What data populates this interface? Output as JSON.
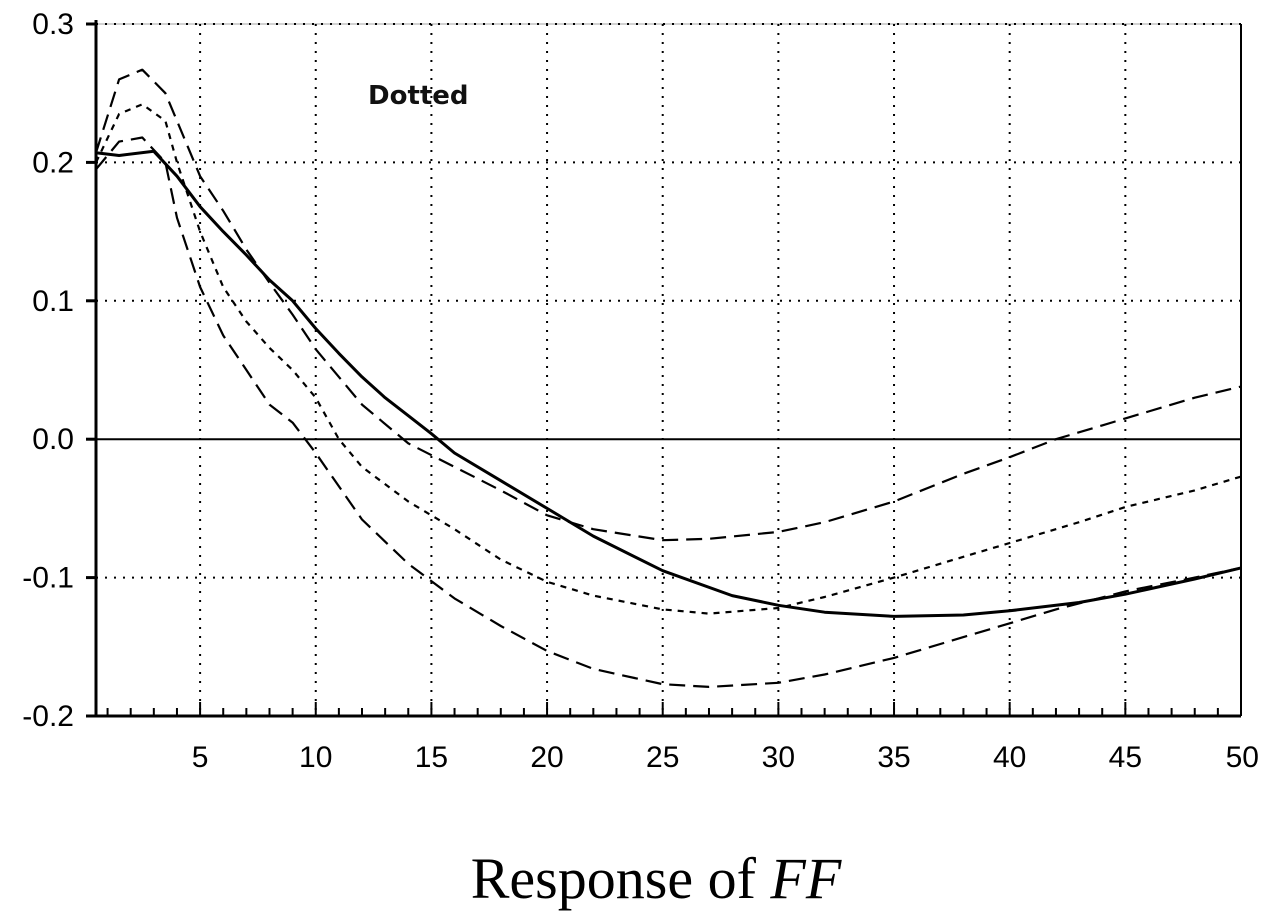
{
  "chart_data": {
    "type": "line",
    "xlabel_text": "Response of ",
    "xlabel_var": "FF",
    "annotation": "Dotted",
    "xlim": [
      0.5,
      50
    ],
    "ylim": [
      -0.2,
      0.3
    ],
    "x_ticks": [
      5,
      10,
      15,
      20,
      25,
      30,
      35,
      40,
      45,
      50
    ],
    "y_ticks": [
      {
        "v": -0.2,
        "label": "-0.2"
      },
      {
        "v": -0.1,
        "label": "-0.1"
      },
      {
        "v": 0.0,
        "label": "0.0"
      },
      {
        "v": 0.1,
        "label": "0.1"
      },
      {
        "v": 0.2,
        "label": "0.2"
      },
      {
        "v": 0.3,
        "label": "0.3"
      }
    ],
    "grid": "dotted",
    "zero_line": true,
    "series": [
      {
        "style": "solid",
        "x": [
          0.5,
          1.5,
          3,
          4,
          5,
          6,
          7,
          8,
          9,
          10,
          11,
          12,
          13,
          14,
          15,
          16,
          18,
          20,
          22,
          25,
          28,
          30,
          32,
          35,
          38,
          40,
          43,
          45,
          48,
          50
        ],
        "y": [
          0.207,
          0.205,
          0.208,
          0.19,
          0.168,
          0.15,
          0.133,
          0.115,
          0.1,
          0.08,
          0.062,
          0.045,
          0.03,
          0.017,
          0.004,
          -0.01,
          -0.03,
          -0.05,
          -0.07,
          -0.095,
          -0.113,
          -0.12,
          -0.125,
          -0.128,
          -0.127,
          -0.124,
          -0.118,
          -0.112,
          -0.101,
          -0.093
        ]
      },
      {
        "style": "dashed-long",
        "x": [
          0.5,
          1.5,
          2.5,
          3.5,
          4,
          5,
          6,
          7,
          8,
          9,
          10,
          12,
          14,
          16,
          18,
          20,
          22,
          25,
          27,
          30,
          32,
          35,
          38,
          40,
          42,
          44,
          46,
          48,
          50
        ],
        "y": [
          0.207,
          0.26,
          0.267,
          0.25,
          0.23,
          0.19,
          0.165,
          0.137,
          0.113,
          0.09,
          0.065,
          0.025,
          -0.003,
          -0.02,
          -0.037,
          -0.055,
          -0.065,
          -0.073,
          -0.072,
          -0.067,
          -0.06,
          -0.045,
          -0.025,
          -0.013,
          0.0,
          0.01,
          0.02,
          0.03,
          0.038
        ]
      },
      {
        "style": "dashed-long",
        "x": [
          0.5,
          1.5,
          2.5,
          3.5,
          4,
          5,
          6,
          7,
          8,
          9,
          10,
          12,
          14,
          16,
          18,
          20,
          22,
          25,
          27,
          30,
          32,
          35,
          38,
          40,
          42,
          45,
          48,
          50
        ],
        "y": [
          0.195,
          0.215,
          0.218,
          0.2,
          0.16,
          0.11,
          0.075,
          0.05,
          0.025,
          0.012,
          -0.01,
          -0.058,
          -0.09,
          -0.115,
          -0.135,
          -0.153,
          -0.166,
          -0.177,
          -0.179,
          -0.176,
          -0.17,
          -0.158,
          -0.143,
          -0.133,
          -0.123,
          -0.11,
          -0.1,
          -0.093
        ]
      },
      {
        "style": "dashed-short",
        "x": [
          0.5,
          1.5,
          2.5,
          3.5,
          4,
          5,
          6,
          7,
          8,
          9,
          10,
          11,
          12,
          14,
          16,
          18,
          20,
          22,
          25,
          27,
          30,
          32,
          35,
          38,
          40,
          43,
          45,
          48,
          50
        ],
        "y": [
          0.2,
          0.235,
          0.242,
          0.23,
          0.2,
          0.15,
          0.11,
          0.085,
          0.066,
          0.05,
          0.03,
          0.0,
          -0.02,
          -0.045,
          -0.065,
          -0.087,
          -0.103,
          -0.113,
          -0.123,
          -0.126,
          -0.122,
          -0.114,
          -0.1,
          -0.085,
          -0.075,
          -0.06,
          -0.049,
          -0.037,
          -0.027
        ]
      }
    ]
  }
}
